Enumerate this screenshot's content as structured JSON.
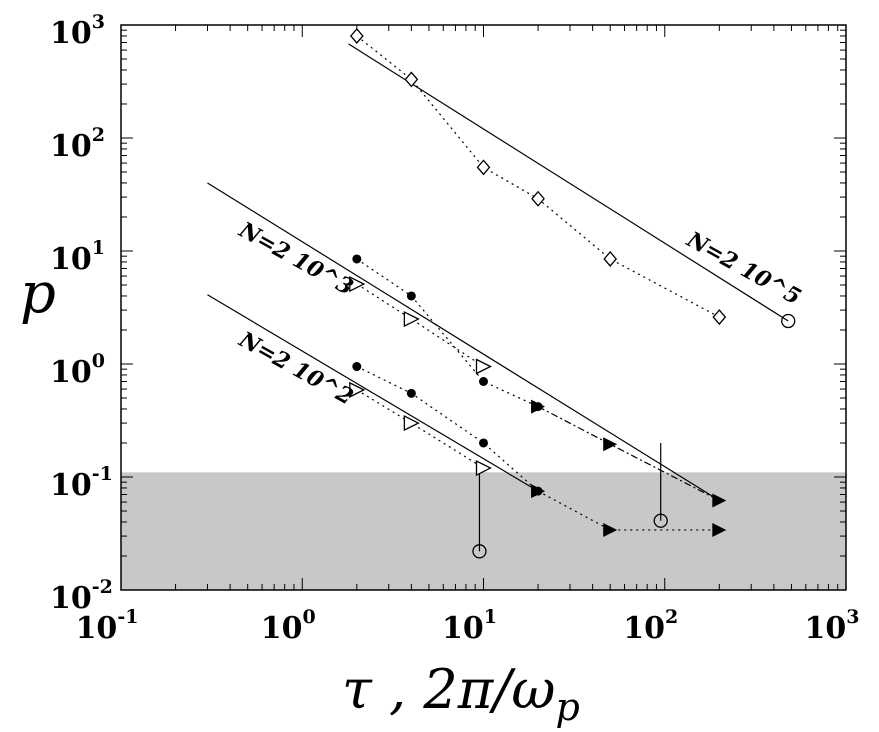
{
  "chart_data": {
    "type": "scatter",
    "x_scale": "log",
    "y_scale": "log",
    "xlim": [
      0.1,
      1000
    ],
    "ylim": [
      0.01,
      1000
    ],
    "xlabel": "τ , 2π/ω",
    "xlabel_subscript": "p",
    "ylabel": "p",
    "x_ticks": [
      {
        "base": "10",
        "exp": "-1",
        "value": 0.1
      },
      {
        "base": "10",
        "exp": "0",
        "value": 1
      },
      {
        "base": "10",
        "exp": "1",
        "value": 10
      },
      {
        "base": "10",
        "exp": "2",
        "value": 100
      },
      {
        "base": "10",
        "exp": "3",
        "value": 1000
      }
    ],
    "y_ticks": [
      {
        "base": "10",
        "exp": "-2",
        "value": 0.01
      },
      {
        "base": "10",
        "exp": "-1",
        "value": 0.1
      },
      {
        "base": "10",
        "exp": "0",
        "value": 1
      },
      {
        "base": "10",
        "exp": "1",
        "value": 10
      },
      {
        "base": "10",
        "exp": "2",
        "value": 100
      },
      {
        "base": "10",
        "exp": "3",
        "value": 1000
      }
    ],
    "shaded_region": {
      "y_min": 0.01,
      "y_max": 0.11,
      "color": "#c8c8c8"
    },
    "series_labels": [
      {
        "text": "N=2 10^5",
        "x": 130,
        "y": 11.5
      },
      {
        "text": "N=2 10^3",
        "x": 0.44,
        "y": 14
      },
      {
        "text": "N=2 10^2",
        "x": 0.44,
        "y": 1.5
      }
    ],
    "series": [
      {
        "marker": "diamond-open",
        "line": "dotted",
        "x": [
          2,
          4,
          10,
          20,
          50,
          200
        ],
        "y": [
          800,
          330,
          55,
          29,
          8.5,
          2.6
        ]
      },
      {
        "marker": "circle-filled",
        "line": "dotted",
        "x": [
          2,
          4,
          10,
          20
        ],
        "y": [
          8.5,
          4,
          0.7,
          0.42
        ]
      },
      {
        "marker": "triangle-right-open",
        "line": "dotted",
        "x": [
          2,
          4,
          10
        ],
        "y": [
          5.1,
          2.5,
          0.95
        ]
      },
      {
        "marker": "triangle-right-filled",
        "line": "dashdot",
        "x": [
          20,
          50,
          200
        ],
        "y": [
          0.42,
          0.195,
          0.062
        ]
      },
      {
        "marker": "circle-filled",
        "line": "dotted",
        "x": [
          2,
          4,
          10,
          20
        ],
        "y": [
          0.95,
          0.55,
          0.2,
          0.075
        ]
      },
      {
        "marker": "triangle-right-open",
        "line": "dotted",
        "x": [
          2,
          4,
          10
        ],
        "y": [
          0.59,
          0.3,
          0.12
        ]
      },
      {
        "marker": "triangle-right-filled",
        "line": "dotted",
        "x": [
          20,
          50,
          200
        ],
        "y": [
          0.075,
          0.034,
          0.034
        ]
      },
      {
        "marker": "circle-open",
        "line": "none",
        "x": [
          9.5,
          95,
          480
        ],
        "y": [
          0.022,
          0.041,
          2.4
        ]
      }
    ],
    "error_bars": [
      {
        "x": 9.5,
        "y_low": 0.022,
        "y_high": 0.12
      },
      {
        "x": 95,
        "y_low": 0.041,
        "y_high": 0.2
      }
    ],
    "fit_lines": [
      {
        "x": [
          1.8,
          480
        ],
        "y": [
          680,
          2.4
        ]
      },
      {
        "x": [
          0.3,
          200
        ],
        "y": [
          40,
          0.062
        ]
      },
      {
        "x": [
          0.3,
          20
        ],
        "y": [
          4.1,
          0.075
        ]
      }
    ]
  }
}
